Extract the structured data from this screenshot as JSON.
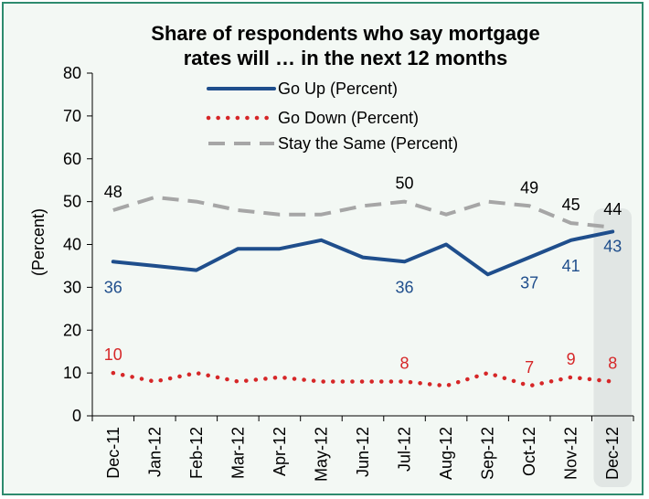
{
  "chart_data": {
    "type": "line",
    "title_line1": "Share of respondents who say mortgage",
    "title_line2": "rates will … in the next 12 months",
    "ylabel": "(Percent)",
    "xlabel": "",
    "ylim": [
      0,
      80
    ],
    "yticks": [
      0,
      10,
      20,
      30,
      40,
      50,
      60,
      70,
      80
    ],
    "categories": [
      "Dec-11",
      "Jan-12",
      "Feb-12",
      "Mar-12",
      "Apr-12",
      "May-12",
      "Jun-12",
      "Jul-12",
      "Aug-12",
      "Sep-12",
      "Oct-12",
      "Nov-12",
      "Dec-12"
    ],
    "highlighted_category": "Dec-12",
    "legend_position": "top-center",
    "grid": false,
    "series": [
      {
        "name": "Go Up (Percent)",
        "color": "#1f4e8c",
        "style": "solid",
        "values": [
          36,
          35,
          34,
          39,
          39,
          41,
          37,
          36,
          40,
          33,
          37,
          41,
          43
        ],
        "data_labels": [
          {
            "index": 0,
            "text": "36"
          },
          {
            "index": 7,
            "text": "36"
          },
          {
            "index": 10,
            "text": "37"
          },
          {
            "index": 11,
            "text": "41"
          },
          {
            "index": 12,
            "text": "43"
          }
        ]
      },
      {
        "name": "Go Down (Percent)",
        "color": "#d62728",
        "style": "dotted",
        "values": [
          10,
          8,
          10,
          8,
          9,
          8,
          8,
          8,
          7,
          10,
          7,
          9,
          8
        ],
        "data_labels": [
          {
            "index": 0,
            "text": "10"
          },
          {
            "index": 7,
            "text": "8"
          },
          {
            "index": 10,
            "text": "7"
          },
          {
            "index": 11,
            "text": "9"
          },
          {
            "index": 12,
            "text": "8"
          }
        ]
      },
      {
        "name": "Stay the Same (Percent)",
        "color": "#a6a6a6",
        "style": "dashed",
        "values": [
          48,
          51,
          50,
          48,
          47,
          47,
          49,
          50,
          47,
          50,
          49,
          45,
          44
        ],
        "data_labels": [
          {
            "index": 0,
            "text": "48"
          },
          {
            "index": 7,
            "text": "50"
          },
          {
            "index": 10,
            "text": "49"
          },
          {
            "index": 11,
            "text": "45"
          },
          {
            "index": 12,
            "text": "44"
          }
        ]
      }
    ]
  }
}
